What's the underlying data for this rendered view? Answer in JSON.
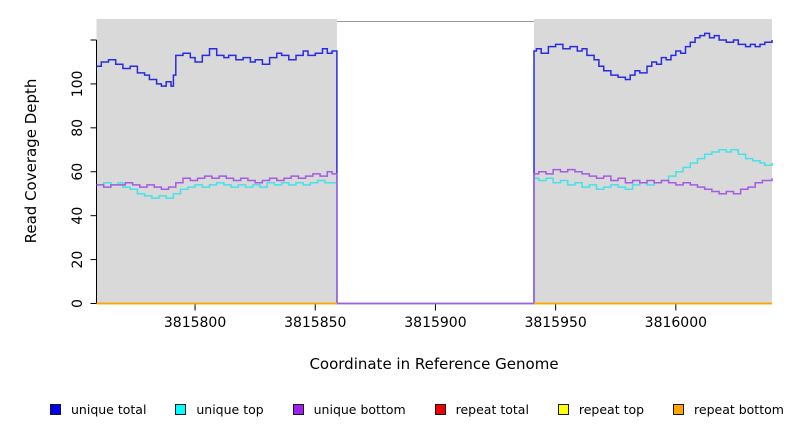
{
  "figure": {
    "title": "",
    "plot_background": "#d9d9d9",
    "outer_background": "#ffffff"
  },
  "legend": {
    "items": [
      {
        "label": "unique total",
        "color": "#0000ee"
      },
      {
        "label": "unique top",
        "color": "#00ffff"
      },
      {
        "label": "unique bottom",
        "color": "#a020f0"
      },
      {
        "label": "repeat total",
        "color": "#ee0000"
      },
      {
        "label": "repeat top",
        "color": "#ffff00"
      },
      {
        "label": "repeat bottom",
        "color": "#ffa500"
      }
    ]
  },
  "chart_data": {
    "type": "line",
    "step": true,
    "title": "",
    "xlabel": "Coordinate in Reference Genome",
    "ylabel": "Read Coverage Depth",
    "xlim": [
      3815759,
      3816040
    ],
    "ylim": [
      0,
      130
    ],
    "grid": false,
    "legend_position": "bottom",
    "x_ticks": [
      3815800,
      3815850,
      3815900,
      3815950,
      3816000
    ],
    "x_tick_labels": [
      "3815800",
      "3815850",
      "3815900",
      "3815950",
      "3816000"
    ],
    "y_ticks": [
      0,
      20,
      40,
      60,
      80,
      100,
      120
    ],
    "y_tick_labels": [
      "0",
      "20",
      "40",
      "60",
      "80",
      "100",
      ""
    ],
    "plot_bg": "#d9d9d9",
    "background_regions": [
      [
        3815759,
        3815859
      ],
      [
        3815941,
        3816040
      ]
    ],
    "gap_region": {
      "start": 3815859,
      "end": 3815941,
      "top_border_color": "#9a9a9a"
    },
    "series": [
      {
        "name": "unique total",
        "color": "#2b2be2",
        "segments": [
          [
            [
              3815759,
              108
            ],
            [
              3815761,
              110
            ],
            [
              3815764,
              111
            ],
            [
              3815767,
              109
            ],
            [
              3815770,
              107
            ],
            [
              3815773,
              108
            ],
            [
              3815776,
              105
            ],
            [
              3815779,
              104
            ],
            [
              3815781,
              102
            ],
            [
              3815784,
              100
            ],
            [
              3815786,
              99
            ],
            [
              3815788,
              101
            ],
            [
              3815790,
              99
            ],
            [
              3815791,
              104
            ],
            [
              3815792,
              113
            ],
            [
              3815795,
              114
            ],
            [
              3815798,
              112
            ],
            [
              3815800,
              110
            ],
            [
              3815803,
              113
            ],
            [
              3815806,
              116
            ],
            [
              3815809,
              113
            ],
            [
              3815812,
              112
            ],
            [
              3815814,
              113
            ],
            [
              3815817,
              111
            ],
            [
              3815820,
              112
            ],
            [
              3815823,
              110
            ],
            [
              3815825,
              111
            ],
            [
              3815828,
              109
            ],
            [
              3815831,
              112
            ],
            [
              3815834,
              114
            ],
            [
              3815836,
              113
            ],
            [
              3815839,
              111
            ],
            [
              3815842,
              113
            ],
            [
              3815845,
              115
            ],
            [
              3815847,
              113
            ],
            [
              3815850,
              114
            ],
            [
              3815853,
              116
            ],
            [
              3815855,
              114
            ],
            [
              3815857,
              115
            ],
            [
              3815859,
              0
            ],
            [
              3815941,
              115
            ],
            [
              3815942,
              116
            ],
            [
              3815944,
              114
            ],
            [
              3815947,
              117
            ],
            [
              3815950,
              118
            ],
            [
              3815953,
              116
            ],
            [
              3815956,
              117
            ],
            [
              3815959,
              115
            ],
            [
              3815961,
              116
            ],
            [
              3815963,
              113
            ],
            [
              3815966,
              111
            ],
            [
              3815968,
              108
            ],
            [
              3815970,
              106
            ],
            [
              3815973,
              104
            ],
            [
              3815976,
              103
            ],
            [
              3815979,
              102
            ],
            [
              3815981,
              104
            ],
            [
              3815983,
              106
            ],
            [
              3815985,
              105
            ],
            [
              3815988,
              108
            ],
            [
              3815990,
              110
            ],
            [
              3815992,
              109
            ],
            [
              3815994,
              112
            ],
            [
              3815996,
              111
            ],
            [
              3815998,
              113
            ],
            [
              3816000,
              115
            ],
            [
              3816002,
              114
            ],
            [
              3816004,
              117
            ],
            [
              3816006,
              119
            ],
            [
              3816008,
              121
            ],
            [
              3816010,
              122
            ],
            [
              3816012,
              123
            ],
            [
              3816014,
              121
            ],
            [
              3816016,
              122
            ],
            [
              3816018,
              120
            ],
            [
              3816021,
              119
            ],
            [
              3816024,
              120
            ],
            [
              3816026,
              118
            ],
            [
              3816029,
              117
            ],
            [
              3816031,
              118
            ],
            [
              3816033,
              117
            ],
            [
              3816035,
              118
            ],
            [
              3816037,
              119
            ],
            [
              3816040,
              120
            ]
          ]
        ]
      },
      {
        "name": "unique top",
        "color": "#45e2e8",
        "segments": [
          [
            [
              3815759,
              54
            ],
            [
              3815762,
              55
            ],
            [
              3815765,
              54
            ],
            [
              3815768,
              55
            ],
            [
              3815770,
              53
            ],
            [
              3815773,
              52
            ],
            [
              3815776,
              50
            ],
            [
              3815779,
              49
            ],
            [
              3815782,
              48
            ],
            [
              3815785,
              49
            ],
            [
              3815788,
              48
            ],
            [
              3815791,
              50
            ],
            [
              3815794,
              52
            ],
            [
              3815797,
              53
            ],
            [
              3815800,
              54
            ],
            [
              3815803,
              53
            ],
            [
              3815806,
              54
            ],
            [
              3815809,
              55
            ],
            [
              3815812,
              54
            ],
            [
              3815815,
              53
            ],
            [
              3815818,
              54
            ],
            [
              3815821,
              53
            ],
            [
              3815824,
              54
            ],
            [
              3815827,
              53
            ],
            [
              3815830,
              55
            ],
            [
              3815833,
              54
            ],
            [
              3815836,
              55
            ],
            [
              3815839,
              54
            ],
            [
              3815842,
              55
            ],
            [
              3815845,
              54
            ],
            [
              3815848,
              55
            ],
            [
              3815851,
              56
            ],
            [
              3815854,
              55
            ],
            [
              3815857,
              55
            ],
            [
              3815859,
              0
            ],
            [
              3815941,
              57
            ],
            [
              3815943,
              56
            ],
            [
              3815946,
              57
            ],
            [
              3815949,
              55
            ],
            [
              3815952,
              56
            ],
            [
              3815955,
              54
            ],
            [
              3815958,
              55
            ],
            [
              3815961,
              53
            ],
            [
              3815964,
              54
            ],
            [
              3815967,
              52
            ],
            [
              3815970,
              53
            ],
            [
              3815973,
              54
            ],
            [
              3815976,
              53
            ],
            [
              3815979,
              52
            ],
            [
              3815982,
              54
            ],
            [
              3815985,
              55
            ],
            [
              3815988,
              54
            ],
            [
              3815991,
              55
            ],
            [
              3815994,
              56
            ],
            [
              3815997,
              58
            ],
            [
              3816000,
              60
            ],
            [
              3816003,
              62
            ],
            [
              3816006,
              64
            ],
            [
              3816009,
              66
            ],
            [
              3816012,
              68
            ],
            [
              3816015,
              69
            ],
            [
              3816018,
              70
            ],
            [
              3816021,
              69
            ],
            [
              3816023,
              70
            ],
            [
              3816026,
              68
            ],
            [
              3816029,
              66
            ],
            [
              3816032,
              65
            ],
            [
              3816035,
              64
            ],
            [
              3816037,
              63
            ],
            [
              3816040,
              64
            ]
          ]
        ]
      },
      {
        "name": "unique bottom",
        "color": "#a55ce0",
        "segments": [
          [
            [
              3815759,
              54
            ],
            [
              3815762,
              53
            ],
            [
              3815765,
              54
            ],
            [
              3815768,
              54
            ],
            [
              3815771,
              55
            ],
            [
              3815774,
              54
            ],
            [
              3815777,
              53
            ],
            [
              3815780,
              54
            ],
            [
              3815783,
              53
            ],
            [
              3815786,
              52
            ],
            [
              3815789,
              53
            ],
            [
              3815792,
              55
            ],
            [
              3815795,
              57
            ],
            [
              3815798,
              56
            ],
            [
              3815801,
              57
            ],
            [
              3815804,
              58
            ],
            [
              3815807,
              57
            ],
            [
              3815810,
              58
            ],
            [
              3815813,
              57
            ],
            [
              3815816,
              56
            ],
            [
              3815819,
              57
            ],
            [
              3815822,
              56
            ],
            [
              3815825,
              55
            ],
            [
              3815828,
              56
            ],
            [
              3815831,
              57
            ],
            [
              3815834,
              56
            ],
            [
              3815837,
              57
            ],
            [
              3815840,
              58
            ],
            [
              3815843,
              57
            ],
            [
              3815846,
              58
            ],
            [
              3815849,
              59
            ],
            [
              3815852,
              58
            ],
            [
              3815855,
              60
            ],
            [
              3815857,
              59
            ],
            [
              3815859,
              0
            ],
            [
              3815941,
              59
            ],
            [
              3815943,
              60
            ],
            [
              3815946,
              59
            ],
            [
              3815949,
              61
            ],
            [
              3815952,
              60
            ],
            [
              3815955,
              61
            ],
            [
              3815958,
              60
            ],
            [
              3815961,
              59
            ],
            [
              3815964,
              58
            ],
            [
              3815967,
              57
            ],
            [
              3815970,
              58
            ],
            [
              3815973,
              56
            ],
            [
              3815976,
              57
            ],
            [
              3815979,
              55
            ],
            [
              3815982,
              56
            ],
            [
              3815985,
              55
            ],
            [
              3815988,
              56
            ],
            [
              3815991,
              55
            ],
            [
              3815994,
              56
            ],
            [
              3815997,
              55
            ],
            [
              3816000,
              54
            ],
            [
              3816003,
              55
            ],
            [
              3816006,
              54
            ],
            [
              3816009,
              53
            ],
            [
              3816012,
              52
            ],
            [
              3816015,
              51
            ],
            [
              3816018,
              50
            ],
            [
              3816021,
              51
            ],
            [
              3816024,
              50
            ],
            [
              3816027,
              52
            ],
            [
              3816030,
              53
            ],
            [
              3816033,
              55
            ],
            [
              3816036,
              56
            ],
            [
              3816040,
              57
            ]
          ]
        ]
      },
      {
        "name": "repeat total",
        "color": "#ee0000",
        "segments": [
          [
            [
              3815759,
              0
            ],
            [
              3815859,
              0
            ]
          ],
          [
            [
              3815941,
              0
            ],
            [
              3816040,
              0
            ]
          ]
        ]
      },
      {
        "name": "repeat top",
        "color": "#ffff00",
        "segments": [
          [
            [
              3815759,
              0
            ],
            [
              3815859,
              0
            ]
          ],
          [
            [
              3815941,
              0
            ],
            [
              3816040,
              0
            ]
          ]
        ]
      },
      {
        "name": "repeat bottom",
        "color": "#ffa500",
        "segments": [
          [
            [
              3815759,
              0
            ],
            [
              3815859,
              0
            ]
          ],
          [
            [
              3815941,
              0
            ],
            [
              3816040,
              0
            ]
          ]
        ]
      }
    ]
  }
}
